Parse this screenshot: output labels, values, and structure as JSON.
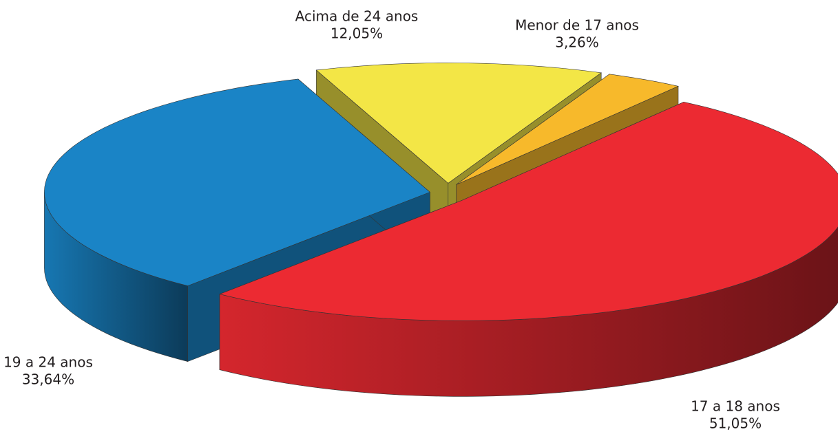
{
  "chart_data": {
    "type": "pie",
    "categories": [
      "Menor de 17 anos",
      "17 a 18 anos",
      "19 a 24 anos",
      "Acima de 24 anos"
    ],
    "values": [
      3.26,
      51.05,
      33.64,
      12.05
    ],
    "value_labels": [
      "3,26%",
      "51,05%",
      "33,64%",
      "12,05%"
    ],
    "colors": [
      "#f7b92b",
      "#ec2a32",
      "#1a84c6",
      "#f3e646"
    ]
  }
}
